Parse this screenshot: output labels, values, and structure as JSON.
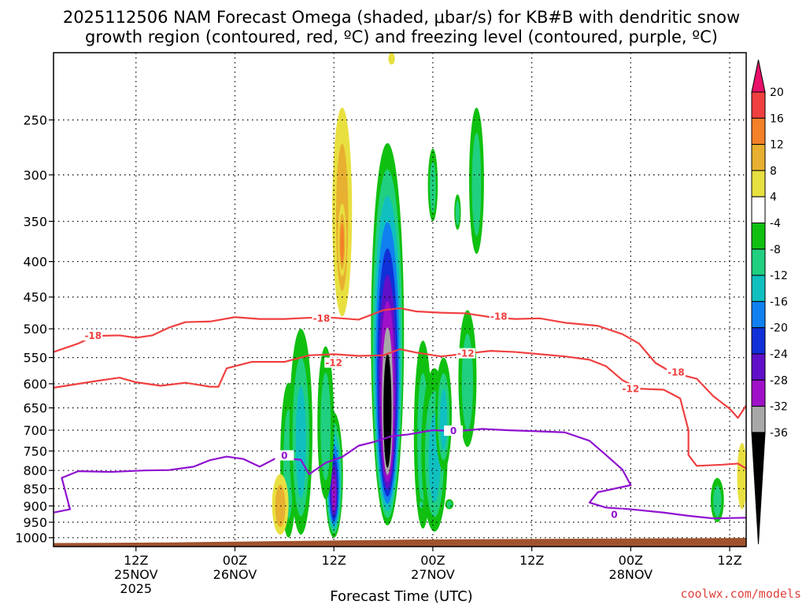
{
  "title": {
    "line1": "2025112506 NAM Forecast Omega (shaded, μbar/s) for KB#B with dendritic snow",
    "line2": "growth region (contoured, red, ºC) and freezing level (contoured, purple, ºC)"
  },
  "credit": "coolwx.com/models",
  "chart_data": {
    "type": "heatmap",
    "xlabel": "Forecast Time (UTC)",
    "ylabel": "",
    "x_range_hours": [
      -4,
      80
    ],
    "y_scale": "log",
    "y_range_hPa": [
      200,
      1030
    ],
    "grid": "dotted",
    "x_ticks": [
      {
        "hour": 6,
        "label": "12Z",
        "date": "25NOV",
        "year": "2025"
      },
      {
        "hour": 18,
        "label": "00Z",
        "date": "26NOV",
        "year": ""
      },
      {
        "hour": 30,
        "label": "12Z",
        "date": "",
        "year": ""
      },
      {
        "hour": 42,
        "label": "00Z",
        "date": "27NOV",
        "year": ""
      },
      {
        "hour": 54,
        "label": "12Z",
        "date": "",
        "year": ""
      },
      {
        "hour": 66,
        "label": "00Z",
        "date": "28NOV",
        "year": ""
      },
      {
        "hour": 78,
        "label": "12Z",
        "date": "",
        "year": ""
      }
    ],
    "y_ticks": [
      250,
      300,
      350,
      400,
      450,
      500,
      550,
      600,
      650,
      700,
      750,
      800,
      850,
      900,
      950,
      1000
    ],
    "colorbar": {
      "labels": [
        "20",
        "16",
        "12",
        "8",
        "4",
        "-4",
        "-8",
        "-12",
        "-16",
        "-20",
        "-24",
        "-28",
        "-32",
        "-36"
      ],
      "colors": [
        "#e8106a",
        "#f04040",
        "#f48028",
        "#e8b030",
        "#e8e040",
        "#ffffff",
        "#10c010",
        "#20d080",
        "#10c0c0",
        "#1080f0",
        "#1030d8",
        "#6010c8",
        "#a010c8",
        "#a8a8a8",
        "#000000"
      ]
    },
    "ground": {
      "color": "#a0522d",
      "top_hPa": [
        {
          "hour": -4,
          "p": 1018
        },
        {
          "hour": 10,
          "p": 1016
        },
        {
          "hour": 40,
          "p": 1006
        },
        {
          "hour": 80,
          "p": 1001
        }
      ]
    },
    "isotherms": [
      {
        "name": "-18",
        "color": "#f04040",
        "labels": [
          {
            "hour": 0.8,
            "p": 512
          },
          {
            "hour": 28.5,
            "p": 483
          },
          {
            "hour": 50,
            "p": 480
          },
          {
            "hour": 71.5,
            "p": 578
          }
        ],
        "points": [
          [
            -4,
            540
          ],
          [
            -1,
            525
          ],
          [
            1,
            512
          ],
          [
            4,
            511
          ],
          [
            6,
            515
          ],
          [
            8,
            511
          ],
          [
            10,
            498
          ],
          [
            12,
            489
          ],
          [
            15,
            488
          ],
          [
            18,
            481
          ],
          [
            21,
            484
          ],
          [
            24,
            484
          ],
          [
            27,
            482
          ],
          [
            30,
            482
          ],
          [
            33,
            485
          ],
          [
            36,
            470
          ],
          [
            38,
            467
          ],
          [
            40,
            472
          ],
          [
            43,
            474
          ],
          [
            46,
            475
          ],
          [
            49,
            481
          ],
          [
            52,
            484
          ],
          [
            55,
            483
          ],
          [
            58,
            490
          ],
          [
            62,
            495
          ],
          [
            65,
            509
          ],
          [
            67,
            525
          ],
          [
            69,
            560
          ],
          [
            71,
            578
          ],
          [
            74,
            590
          ],
          [
            76,
            625
          ],
          [
            78,
            652
          ],
          [
            79,
            672
          ],
          [
            80,
            645
          ]
        ]
      },
      {
        "name": "-12",
        "color": "#f04040",
        "labels": [
          {
            "hour": 30,
            "p": 560
          },
          {
            "hour": 46,
            "p": 543
          },
          {
            "hour": 66,
            "p": 610
          }
        ],
        "points": [
          [
            -4,
            608
          ],
          [
            1,
            595
          ],
          [
            4,
            588
          ],
          [
            6,
            597
          ],
          [
            9,
            604
          ],
          [
            12,
            598
          ],
          [
            15,
            606
          ],
          [
            16,
            606
          ],
          [
            17,
            570
          ],
          [
            20,
            558
          ],
          [
            24,
            558
          ],
          [
            27,
            546
          ],
          [
            30,
            544
          ],
          [
            33,
            547
          ],
          [
            36,
            546
          ],
          [
            38,
            535
          ],
          [
            40,
            541
          ],
          [
            43,
            548
          ],
          [
            46,
            543
          ],
          [
            49,
            538
          ],
          [
            52,
            540
          ],
          [
            55,
            544
          ],
          [
            58,
            548
          ],
          [
            61,
            554
          ],
          [
            63,
            566
          ],
          [
            65,
            593
          ],
          [
            67,
            610
          ],
          [
            70,
            612
          ],
          [
            72,
            630
          ],
          [
            73,
            700
          ],
          [
            73,
            760
          ],
          [
            74,
            788
          ],
          [
            77,
            785
          ],
          [
            79,
            782
          ],
          [
            80,
            795
          ]
        ]
      },
      {
        "name": "0",
        "color": "#9010d0",
        "labels": [
          {
            "hour": 24,
            "p": 762
          },
          {
            "hour": 44.5,
            "p": 702
          },
          {
            "hour": 64,
            "p": 927
          }
        ],
        "points": [
          [
            -4,
            920
          ],
          [
            -2,
            910
          ],
          [
            -3,
            820
          ],
          [
            -1,
            802
          ],
          [
            3,
            804
          ],
          [
            7,
            800
          ],
          [
            10,
            799
          ],
          [
            13,
            790
          ],
          [
            15,
            773
          ],
          [
            17,
            764
          ],
          [
            19,
            770
          ],
          [
            21,
            790
          ],
          [
            23,
            768
          ],
          [
            26,
            772
          ],
          [
            27,
            810
          ],
          [
            29,
            780
          ],
          [
            31,
            765
          ],
          [
            33,
            737
          ],
          [
            35,
            727
          ],
          [
            37,
            714
          ],
          [
            39,
            710
          ],
          [
            42,
            700
          ],
          [
            45,
            702
          ],
          [
            48,
            697
          ],
          [
            51,
            700
          ],
          [
            54,
            702
          ],
          [
            58,
            705
          ],
          [
            61,
            725
          ],
          [
            63,
            760
          ],
          [
            65,
            798
          ],
          [
            66,
            840
          ],
          [
            62,
            860
          ],
          [
            61,
            890
          ],
          [
            63,
            905
          ],
          [
            66,
            910
          ],
          [
            70,
            920
          ],
          [
            73,
            930
          ],
          [
            76,
            938
          ],
          [
            80,
            936
          ]
        ]
      }
    ],
    "omega_cells": [
      {
        "hour": 24.5,
        "p_top": 598,
        "p_bot": 1000,
        "width": 1.0,
        "min": -8
      },
      {
        "hour": 26.0,
        "p_top": 500,
        "p_bot": 990,
        "width": 1.4,
        "min": -12
      },
      {
        "hour": 30.0,
        "p_top": 660,
        "p_bot": 1000,
        "width": 1.1,
        "min": -28
      },
      {
        "hour": 36.5,
        "p_top": 270,
        "p_bot": 960,
        "width": 2.0,
        "min": -40
      },
      {
        "hour": 40.8,
        "p_top": 520,
        "p_bot": 970,
        "width": 1.1,
        "min": -8
      },
      {
        "hour": 42.2,
        "p_top": 570,
        "p_bot": 980,
        "width": 1.6,
        "min": -12
      },
      {
        "hour": 43.3,
        "p_top": 550,
        "p_bot": 800,
        "width": 1.0,
        "min": -12
      },
      {
        "hour": 46.2,
        "p_top": 470,
        "p_bot": 740,
        "width": 1.1,
        "min": -8
      },
      {
        "hour": 42.0,
        "p_top": 275,
        "p_bot": 350,
        "width": 0.6,
        "min": -8
      },
      {
        "hour": 47.3,
        "p_top": 240,
        "p_bot": 390,
        "width": 0.9,
        "min": -8
      },
      {
        "hour": 45.0,
        "p_top": 320,
        "p_bot": 360,
        "width": 0.4,
        "min": -8
      },
      {
        "hour": 76.5,
        "p_top": 820,
        "p_bot": 950,
        "width": 0.8,
        "min": -8
      },
      {
        "hour": 44.0,
        "p_top": 880,
        "p_bot": 910,
        "width": 0.5,
        "min": -8
      },
      {
        "hour": 29.0,
        "p_top": 530,
        "p_bot": 880,
        "width": 1.0,
        "min": -8
      },
      {
        "hour": 40.6,
        "p_top": 880,
        "p_bot": 910,
        "width": 0.4,
        "min": -8
      }
    ],
    "omega_pos_cells": [
      {
        "hour": 31.0,
        "p_top": 240,
        "p_bot": 480,
        "width": 1.2,
        "max": 8
      },
      {
        "hour": 31.0,
        "p_top": 330,
        "p_bot": 420,
        "width": 0.5,
        "max": 12
      },
      {
        "hour": 23.5,
        "p_top": 810,
        "p_bot": 990,
        "width": 1.0,
        "max": 8
      },
      {
        "hour": 37.0,
        "p_top": 200,
        "p_bot": 208,
        "width": 0.4,
        "max": 4
      },
      {
        "hour": 79.5,
        "p_top": 730,
        "p_bot": 910,
        "width": 0.6,
        "max": 4
      }
    ]
  }
}
